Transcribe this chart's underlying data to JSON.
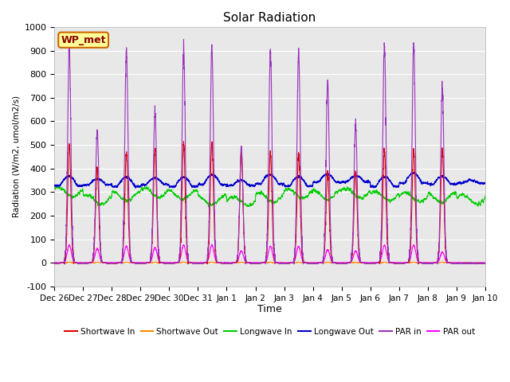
{
  "title": "Solar Radiation",
  "ylabel": "Radiation (W/m2, umol/m2/s)",
  "xlabel": "Time",
  "ylim": [
    -100,
    1000
  ],
  "yticks": [
    -100,
    0,
    100,
    200,
    300,
    400,
    500,
    600,
    700,
    800,
    900,
    1000
  ],
  "n_days": 15,
  "colors": {
    "shortwave_in": "#dd0000",
    "shortwave_out": "#ff8800",
    "longwave_in": "#00cc00",
    "longwave_out": "#0000cc",
    "par_in": "#9933bb",
    "par_out": "#ff00ff"
  },
  "bg_color": "#e8e8e8",
  "annotation_text": "WP_met",
  "annotation_bg": "#ffff99",
  "annotation_border": "#cc6600",
  "par_peaks": [
    910,
    560,
    900,
    645,
    910,
    920,
    490,
    895,
    885,
    760,
    590,
    925,
    930,
    750,
    0
  ],
  "sw_peaks": [
    500,
    400,
    470,
    480,
    500,
    510,
    470,
    465,
    465,
    385,
    385,
    480,
    480,
    480,
    0
  ],
  "par_out_peaks": [
    75,
    60,
    70,
    65,
    75,
    75,
    50,
    70,
    70,
    55,
    50,
    75,
    75,
    45,
    0
  ],
  "lw_out_base": 340,
  "lw_in_base": 285,
  "pts_per_day": 288,
  "tick_labels": [
    "Dec 26",
    "Dec 27",
    "Dec 28",
    "Dec 29",
    "Dec 30",
    "Dec 31",
    "Jan 1",
    "Jan 2",
    "Jan 3",
    "Jan 4",
    "Jan 5",
    "Jan 6",
    "Jan 7",
    "Jan 8",
    "Jan 9",
    "Jan 10"
  ]
}
